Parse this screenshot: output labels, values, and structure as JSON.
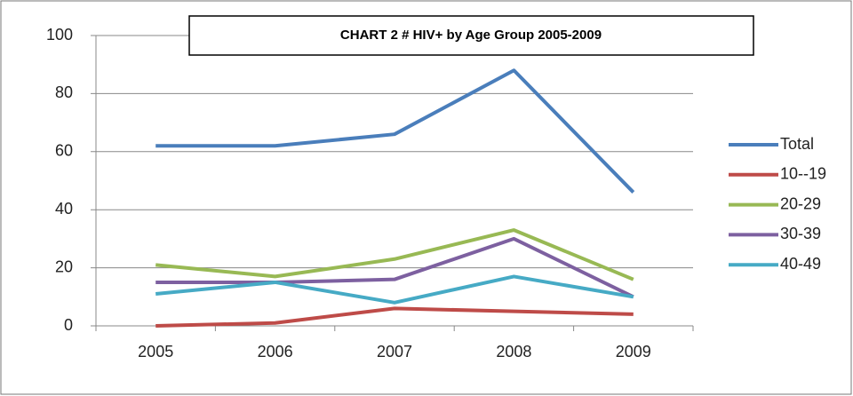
{
  "chart_data": {
    "type": "line",
    "title": "CHART 2   # HIV+ by Age Group 2005-2009",
    "categories": [
      "2005",
      "2006",
      "2007",
      "2008",
      "2009"
    ],
    "series": [
      {
        "name": "Total",
        "color": "#4a7ebb",
        "values": [
          62,
          62,
          66,
          88,
          46
        ]
      },
      {
        "name": "10--19",
        "color": "#be4b48",
        "values": [
          0,
          1,
          6,
          5,
          4
        ]
      },
      {
        "name": "20-29",
        "color": "#98b954",
        "values": [
          21,
          17,
          23,
          33,
          16
        ]
      },
      {
        "name": "30-39",
        "color": "#7d60a0",
        "values": [
          15,
          15,
          16,
          30,
          10
        ]
      },
      {
        "name": "40-49",
        "color": "#46aac5",
        "values": [
          11,
          15,
          8,
          17,
          10
        ]
      }
    ],
    "ylim": [
      0,
      100
    ],
    "yticks": [
      0,
      20,
      40,
      60,
      80,
      100
    ],
    "grid": true,
    "legend": "right"
  }
}
